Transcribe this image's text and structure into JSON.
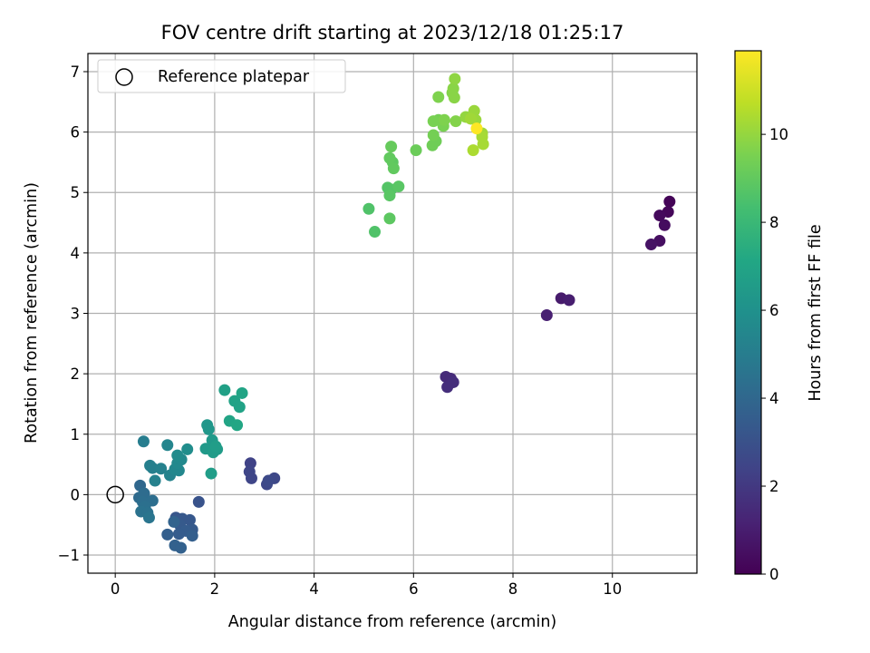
{
  "chart_data": {
    "type": "scatter",
    "title": "FOV centre drift starting at 2023/12/18 01:25:17",
    "xlabel": "Angular distance from reference (arcmin)",
    "ylabel": "Rotation from reference (arcmin)",
    "xlim": [
      -0.55,
      11.7
    ],
    "ylim": [
      -1.3,
      7.3
    ],
    "xticks": [
      0,
      2,
      4,
      6,
      8,
      10
    ],
    "yticks": [
      -1,
      0,
      1,
      2,
      3,
      4,
      5,
      6,
      7
    ],
    "grid": true,
    "legend": {
      "position": "upper-left",
      "entries": [
        "Reference platepar"
      ]
    },
    "reference_point": {
      "x": 0,
      "y": 0,
      "label": "Reference platepar",
      "color": "#000000"
    },
    "colorbar": {
      "label": "Hours from first FF file",
      "colormap": "viridis",
      "min": 0,
      "max": 11.9,
      "ticks": [
        0,
        2,
        4,
        6,
        8,
        10
      ]
    },
    "points": [
      {
        "x": 11.15,
        "y": 4.85,
        "c": 0.1
      },
      {
        "x": 11.12,
        "y": 4.68,
        "c": 0.2
      },
      {
        "x": 10.95,
        "y": 4.62,
        "c": 0.3
      },
      {
        "x": 11.05,
        "y": 4.46,
        "c": 0.4
      },
      {
        "x": 10.95,
        "y": 4.2,
        "c": 0.5
      },
      {
        "x": 10.78,
        "y": 4.14,
        "c": 0.6
      },
      {
        "x": 8.97,
        "y": 3.25,
        "c": 0.9
      },
      {
        "x": 9.13,
        "y": 3.22,
        "c": 1.0
      },
      {
        "x": 8.68,
        "y": 2.97,
        "c": 1.1
      },
      {
        "x": 6.65,
        "y": 1.95,
        "c": 1.5
      },
      {
        "x": 6.75,
        "y": 1.92,
        "c": 1.5
      },
      {
        "x": 6.8,
        "y": 1.86,
        "c": 1.6
      },
      {
        "x": 6.68,
        "y": 1.78,
        "c": 1.6
      },
      {
        "x": 2.72,
        "y": 0.52,
        "c": 2.4
      },
      {
        "x": 2.7,
        "y": 0.38,
        "c": 2.5
      },
      {
        "x": 2.74,
        "y": 0.27,
        "c": 2.5
      },
      {
        "x": 3.2,
        "y": 0.27,
        "c": 2.6
      },
      {
        "x": 3.05,
        "y": 0.17,
        "c": 2.6
      },
      {
        "x": 3.08,
        "y": 0.23,
        "c": 2.7
      },
      {
        "x": 1.68,
        "y": -0.12,
        "c": 3.1
      },
      {
        "x": 1.22,
        "y": -0.38,
        "c": 3.2
      },
      {
        "x": 1.35,
        "y": -0.4,
        "c": 3.3
      },
      {
        "x": 1.5,
        "y": -0.42,
        "c": 3.3
      },
      {
        "x": 1.3,
        "y": -0.5,
        "c": 3.4
      },
      {
        "x": 1.55,
        "y": -0.58,
        "c": 3.4
      },
      {
        "x": 1.42,
        "y": -0.6,
        "c": 3.5
      },
      {
        "x": 1.28,
        "y": -0.65,
        "c": 3.5
      },
      {
        "x": 1.55,
        "y": -0.68,
        "c": 3.6
      },
      {
        "x": 1.05,
        "y": -0.66,
        "c": 3.6
      },
      {
        "x": 1.2,
        "y": -0.84,
        "c": 3.7
      },
      {
        "x": 1.32,
        "y": -0.88,
        "c": 3.7
      },
      {
        "x": 1.18,
        "y": -0.45,
        "c": 3.8
      },
      {
        "x": 0.5,
        "y": 0.15,
        "c": 4.0
      },
      {
        "x": 0.48,
        "y": -0.05,
        "c": 4.1
      },
      {
        "x": 0.58,
        "y": 0.02,
        "c": 4.2
      },
      {
        "x": 0.55,
        "y": -0.12,
        "c": 4.3
      },
      {
        "x": 0.75,
        "y": -0.1,
        "c": 4.3
      },
      {
        "x": 0.6,
        "y": -0.2,
        "c": 4.4
      },
      {
        "x": 0.52,
        "y": -0.28,
        "c": 4.5
      },
      {
        "x": 0.65,
        "y": -0.3,
        "c": 4.5
      },
      {
        "x": 0.68,
        "y": -0.38,
        "c": 4.6
      },
      {
        "x": 0.57,
        "y": 0.88,
        "c": 5.0
      },
      {
        "x": 0.7,
        "y": 0.48,
        "c": 5.1
      },
      {
        "x": 0.75,
        "y": 0.44,
        "c": 5.1
      },
      {
        "x": 0.92,
        "y": 0.43,
        "c": 5.2
      },
      {
        "x": 0.8,
        "y": 0.23,
        "c": 5.2
      },
      {
        "x": 1.1,
        "y": 0.32,
        "c": 5.3
      },
      {
        "x": 1.05,
        "y": 0.82,
        "c": 5.4
      },
      {
        "x": 1.2,
        "y": 0.42,
        "c": 5.5
      },
      {
        "x": 1.28,
        "y": 0.4,
        "c": 5.5
      },
      {
        "x": 1.25,
        "y": 0.52,
        "c": 5.6
      },
      {
        "x": 1.33,
        "y": 0.58,
        "c": 5.6
      },
      {
        "x": 1.25,
        "y": 0.65,
        "c": 5.7
      },
      {
        "x": 1.45,
        "y": 0.75,
        "c": 5.8
      },
      {
        "x": 1.85,
        "y": 1.15,
        "c": 6.3
      },
      {
        "x": 1.88,
        "y": 1.08,
        "c": 6.3
      },
      {
        "x": 1.82,
        "y": 0.76,
        "c": 6.4
      },
      {
        "x": 1.95,
        "y": 0.9,
        "c": 6.4
      },
      {
        "x": 2.05,
        "y": 0.75,
        "c": 6.5
      },
      {
        "x": 1.97,
        "y": 0.7,
        "c": 6.5
      },
      {
        "x": 2.02,
        "y": 0.8,
        "c": 6.6
      },
      {
        "x": 1.93,
        "y": 0.35,
        "c": 6.6
      },
      {
        "x": 2.2,
        "y": 1.73,
        "c": 6.8
      },
      {
        "x": 2.4,
        "y": 1.55,
        "c": 6.9
      },
      {
        "x": 2.5,
        "y": 1.45,
        "c": 6.9
      },
      {
        "x": 2.55,
        "y": 1.68,
        "c": 7.0
      },
      {
        "x": 2.3,
        "y": 1.22,
        "c": 7.0
      },
      {
        "x": 2.45,
        "y": 1.15,
        "c": 7.1
      },
      {
        "x": 5.1,
        "y": 4.73,
        "c": 8.6
      },
      {
        "x": 5.22,
        "y": 4.35,
        "c": 8.6
      },
      {
        "x": 5.48,
        "y": 5.08,
        "c": 8.7
      },
      {
        "x": 5.55,
        "y": 5.05,
        "c": 8.7
      },
      {
        "x": 5.52,
        "y": 4.95,
        "c": 8.8
      },
      {
        "x": 5.7,
        "y": 5.1,
        "c": 8.8
      },
      {
        "x": 5.52,
        "y": 4.57,
        "c": 8.9
      },
      {
        "x": 5.58,
        "y": 5.5,
        "c": 8.9
      },
      {
        "x": 5.6,
        "y": 5.4,
        "c": 9.0
      },
      {
        "x": 5.52,
        "y": 5.57,
        "c": 9.0
      },
      {
        "x": 5.55,
        "y": 5.76,
        "c": 9.1
      },
      {
        "x": 6.05,
        "y": 5.7,
        "c": 9.2
      },
      {
        "x": 6.38,
        "y": 5.78,
        "c": 9.3
      },
      {
        "x": 6.45,
        "y": 5.85,
        "c": 9.3
      },
      {
        "x": 6.4,
        "y": 5.95,
        "c": 9.4
      },
      {
        "x": 6.5,
        "y": 6.2,
        "c": 9.4
      },
      {
        "x": 6.4,
        "y": 6.18,
        "c": 9.5
      },
      {
        "x": 6.6,
        "y": 6.1,
        "c": 9.5
      },
      {
        "x": 6.62,
        "y": 6.2,
        "c": 9.6
      },
      {
        "x": 6.5,
        "y": 6.58,
        "c": 9.6
      },
      {
        "x": 6.85,
        "y": 6.18,
        "c": 9.7
      },
      {
        "x": 6.78,
        "y": 6.65,
        "c": 9.7
      },
      {
        "x": 6.8,
        "y": 6.72,
        "c": 9.8
      },
      {
        "x": 6.82,
        "y": 6.57,
        "c": 9.8
      },
      {
        "x": 6.83,
        "y": 6.88,
        "c": 9.9
      },
      {
        "x": 7.05,
        "y": 6.25,
        "c": 10.0
      },
      {
        "x": 7.22,
        "y": 6.35,
        "c": 10.1
      },
      {
        "x": 7.25,
        "y": 6.2,
        "c": 10.1
      },
      {
        "x": 7.15,
        "y": 6.22,
        "c": 10.2
      },
      {
        "x": 7.38,
        "y": 5.98,
        "c": 10.2
      },
      {
        "x": 7.38,
        "y": 5.92,
        "c": 10.3
      },
      {
        "x": 7.4,
        "y": 5.8,
        "c": 10.3
      },
      {
        "x": 7.2,
        "y": 5.7,
        "c": 10.4
      },
      {
        "x": 7.27,
        "y": 6.06,
        "c": 11.9
      }
    ]
  }
}
